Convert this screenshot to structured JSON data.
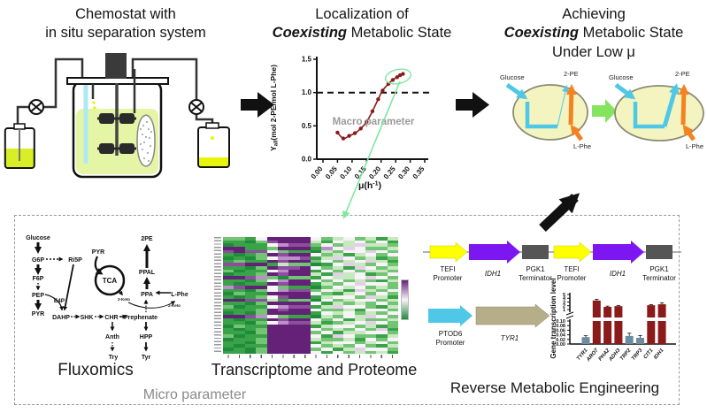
{
  "titles": {
    "chemostat": {
      "line1": "Chemostat with",
      "line2": "in situ separation system"
    },
    "localization": {
      "line1": "Localization of",
      "emph": "Coexisting",
      "rest": " Metabolic State"
    },
    "achieving": {
      "line1": "Achieving",
      "emph": "Coexisting",
      "rest": " Metabolic State",
      "line3": "Under Low μ"
    }
  },
  "macro_label": "Macro parameter",
  "micro_label": "Micro parameter",
  "captions": {
    "fluxomics": "Fluxomics",
    "omics": "Transcriptome and Proteome",
    "rme": "Reverse Metabolic Engineering"
  },
  "cells": {
    "glucose": "Glucose",
    "pe": "2-PE",
    "phe": "L-Phe"
  },
  "pathway": {
    "glucose": "Glucose",
    "g6p": "G6P",
    "risp": "Ri5P",
    "f6p": "F6P",
    "pep": "PEP",
    "pyr": "PYR",
    "e4p": "E4P",
    "dahp": "DAHP",
    "shk": "SHK",
    "chr": "CHR",
    "prephenate": "Prephenate",
    "anth": "Anth",
    "try": "Try",
    "hpp": "HPP",
    "tyr": "Tyr",
    "pyr2": "PYR",
    "tca": "TCA",
    "keto_left": "2-Keto",
    "ppa": "PPA",
    "lphe": "L-Phe",
    "keto_right": "2-Keto",
    "ppal": "PPAL",
    "pe": "2PE"
  },
  "constructs": {
    "row1": {
      "p1a": "TEFI",
      "p1b": "Promoter",
      "g1": "IDH1",
      "t1a": "PGK1",
      "t1b": "Terminator",
      "p2a": "TEFI",
      "p2b": "Promoter",
      "g2": "IDH1",
      "t2a": "PGK1",
      "t2b": "Terminator"
    },
    "row2": {
      "pa": "PTOD6",
      "pb": "Promoter",
      "gene": "TYR1"
    }
  },
  "colors": {
    "dark_red": "#8b1a1a",
    "slate": "#6e8ca0",
    "green_accent": "#7ce8a0",
    "block_green": "#84e45e",
    "cyan": "#4fc8e8",
    "orange": "#f58220",
    "cell_fill": "#f4f4c0",
    "promoter_yellow": "#ffff00",
    "gene_purple": "#7d17f2",
    "terminator_gray": "#555555",
    "tyr1_tan": "#b5ae88",
    "liquid": "#e4f6a5",
    "bottle_yellow": "#e2f000"
  },
  "chart_data": [
    {
      "type": "scatter",
      "title": "Localization of Coexisting Metabolic State",
      "xlabel": "μ(h⁻¹)",
      "xlabel_parts": [
        "μ(h",
        "-1",
        ")"
      ],
      "ylabel": "Yall(mol 2-PE/mol L-Phe)",
      "ylabel_parts": [
        "Y",
        "all",
        "(mol 2-PE/mol L-Phe)"
      ],
      "x": [
        0.05,
        0.07,
        0.09,
        0.11,
        0.13,
        0.15,
        0.17,
        0.19,
        0.205,
        0.225,
        0.24,
        0.255,
        0.265,
        0.275
      ],
      "y": [
        0.4,
        0.31,
        0.35,
        0.39,
        0.46,
        0.56,
        0.72,
        0.9,
        1.03,
        1.13,
        1.19,
        1.23,
        1.26,
        1.28
      ],
      "xticks": [
        "0.00",
        "0.05",
        "0.10",
        "0.15",
        "0.20",
        "0.25",
        "0.30",
        "0.35"
      ],
      "yticks": [
        "0.0",
        "0.5",
        "1.0",
        "1.5"
      ],
      "xlim": [
        0,
        0.35
      ],
      "ylim": [
        0,
        1.5
      ],
      "dashed_line_y": 1.0,
      "point_color": "#8b1a1a",
      "highlight_ellipse_at": [
        0.255,
        1.24
      ]
    },
    {
      "type": "bar",
      "ylabel": "Gene transcription level",
      "categories": [
        "TYR1",
        "ARO7",
        "PHA2",
        "ADH3",
        "TRP2",
        "TRP3",
        "CIT1",
        "IDH1"
      ],
      "values": [
        0.03,
        3.4,
        1.7,
        1.9,
        0.035,
        0.027,
        2.15,
        2.4
      ],
      "errors": [
        0.006,
        0.35,
        0.2,
        0.15,
        0.012,
        0.01,
        0.15,
        0.4
      ],
      "bar_colors": [
        "#6e8ca0",
        "#8b1a1a",
        "#8b1a1a",
        "#8b1a1a",
        "#6e8ca0",
        "#6e8ca0",
        "#8b1a1a",
        "#8b1a1a"
      ],
      "axis_break": {
        "top_ticks": [
          "5",
          "4",
          "3",
          "2",
          "1"
        ],
        "bottom_ticks": [
          "0.10",
          "0.08",
          "0.06",
          "0.04",
          "0.02",
          "0.00"
        ],
        "top_range": [
          1,
          5
        ],
        "bottom_range": [
          0,
          0.1
        ]
      }
    },
    {
      "type": "heatmap",
      "rows": 36,
      "cols": 16,
      "palette": [
        "#1e8c3c",
        "#3aa347",
        "#74c476",
        "#c8e8c0",
        "#f7f4f8",
        "#e3d0e8",
        "#bb8fc9",
        "#8e4d9e",
        "#652178"
      ],
      "cells": [
        "2214888842342313",
        "1102788831434241",
        "0111467724235332",
        "8811288816454223",
        "7877421103244542",
        "1012878842313424",
        "0102466713542312",
        "1211878824234531",
        "7788132201453242",
        "1102877842315423",
        "2011468814242332",
        "0112878831534124",
        "8876202214334542",
        "1102468842423213",
        "1011878813245442",
        "6788421102434232",
        "1102467724315324",
        "0211888842134242",
        "1012478813442531",
        "8877312204234423",
        "1102888841323242",
        "2011467713544213",
        "1112878842231442",
        "0102888814342324",
        "8876421103243542",
        "1011878842413223",
        "1102467731234542",
        "0211888813442312",
        "1012888842324251",
        "1102888824133442",
        "2011888841542213",
        "0112888832231424",
        "1102888813442342",
        "1011888842324213",
        "0102888824135442",
        "1102888841423231"
      ]
    }
  ]
}
